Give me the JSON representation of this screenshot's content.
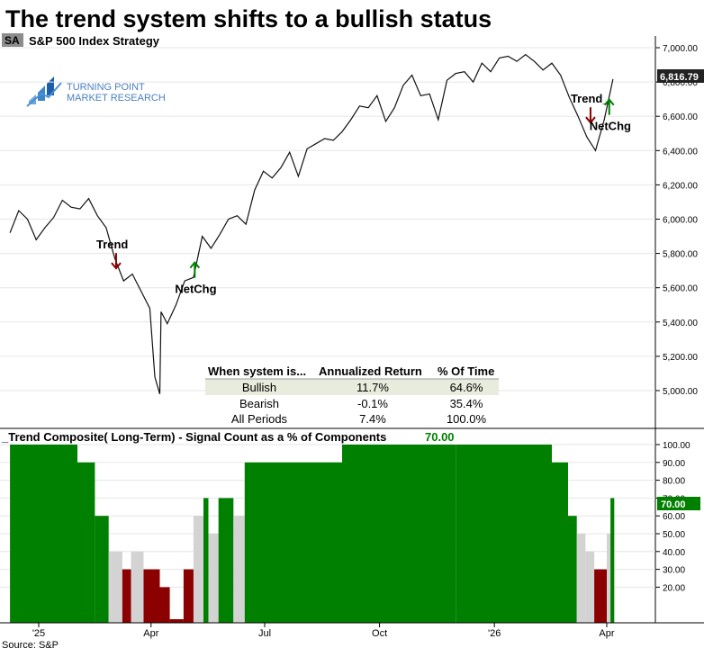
{
  "title": "The trend system shifts to a bullish status",
  "symbol_badge": "SA",
  "subtitle": "S&P 500 Index  Strategy",
  "logo": {
    "line1": "TURNING POINT",
    "line2": "MARKET RESEARCH"
  },
  "source": "Source: S&P",
  "colors": {
    "line": "#111111",
    "bullish": "#008000",
    "bearish": "#8b0000",
    "neutral": "#d3d3d3",
    "grid": "#e6e6e6"
  },
  "chart_data": [
    {
      "type": "line",
      "title": "S&P 500 Index  Strategy",
      "series": [
        {
          "x": [
            "2024-12-09",
            "2024-12-16",
            "2024-12-23",
            "2024-12-30",
            "2025-01-06",
            "2025-01-13",
            "2025-01-20",
            "2025-01-27",
            "2025-02-03",
            "2025-02-10",
            "2025-02-17",
            "2025-02-24",
            "2025-03-03",
            "2025-03-10",
            "2025-03-17",
            "2025-03-24",
            "2025-03-31",
            "2025-04-04",
            "2025-04-08",
            "2025-04-09",
            "2025-04-14",
            "2025-04-21",
            "2025-04-28",
            "2025-05-05",
            "2025-05-12",
            "2025-05-19",
            "2025-05-26",
            "2025-06-02",
            "2025-06-09",
            "2025-06-16",
            "2025-06-23",
            "2025-06-30",
            "2025-07-07",
            "2025-07-14",
            "2025-07-21",
            "2025-07-28",
            "2025-08-04",
            "2025-08-11",
            "2025-08-18",
            "2025-08-25",
            "2025-09-01",
            "2025-09-08",
            "2025-09-15",
            "2025-09-22",
            "2025-09-29",
            "2025-10-06",
            "2025-10-13",
            "2025-10-20",
            "2025-10-27",
            "2025-11-03",
            "2025-11-10",
            "2025-11-17",
            "2025-11-24",
            "2025-12-01",
            "2025-12-08",
            "2025-12-15",
            "2025-12-22",
            "2025-12-29",
            "2026-01-05",
            "2026-01-12",
            "2026-01-19",
            "2026-01-26",
            "2026-02-02",
            "2026-02-09",
            "2026-02-16",
            "2026-02-23",
            "2026-03-02",
            "2026-03-09",
            "2026-03-16",
            "2026-03-23",
            "2026-03-30",
            "2026-04-06"
          ],
          "values": [
            5920,
            6050,
            6000,
            5880,
            5950,
            6010,
            6110,
            6070,
            6060,
            6120,
            6020,
            5950,
            5770,
            5640,
            5680,
            5580,
            5480,
            5080,
            4980,
            5460,
            5390,
            5500,
            5640,
            5660,
            5900,
            5830,
            5910,
            6000,
            6020,
            5970,
            6170,
            6280,
            6240,
            6300,
            6390,
            6250,
            6410,
            6440,
            6470,
            6460,
            6510,
            6580,
            6660,
            6650,
            6720,
            6570,
            6650,
            6780,
            6840,
            6720,
            6730,
            6580,
            6810,
            6850,
            6860,
            6800,
            6910,
            6860,
            6940,
            6950,
            6920,
            6960,
            6920,
            6870,
            6910,
            6840,
            6710,
            6600,
            6480,
            6400,
            6580,
            6816.79
          ]
        }
      ],
      "last_value_label": "6,816.79",
      "yticks": [
        "7,000.00",
        "6,800.00",
        "6,600.00",
        "6,400.00",
        "6,200.00",
        "6,000.00",
        "5,800.00",
        "5,600.00",
        "5,400.00",
        "5,200.00",
        "5,000.00"
      ],
      "ylim": [
        4900,
        7050
      ],
      "annotations": [
        {
          "text": "Trend",
          "arrow": "down",
          "color": "#8b0000",
          "date": "2025-03-04",
          "value": 5750
        },
        {
          "text": "NetChg",
          "arrow": "up",
          "color": "#008000",
          "date": "2025-05-06",
          "value": 5700
        },
        {
          "text": "Trend_",
          "arrow": "down",
          "color": "#8b0000",
          "date": "2026-03-19",
          "value": 6600
        },
        {
          "text": "NetChg",
          "arrow": "up",
          "color": "#008000",
          "date": "2026-04-03",
          "value": 6650
        }
      ]
    },
    {
      "type": "table",
      "columns": [
        "When system is...",
        "Annualized Return",
        "% Of Time"
      ],
      "rows": [
        [
          "Bullish",
          "11.7%",
          "64.6%"
        ],
        [
          "Bearish",
          "-0.1%",
          "35.4%"
        ],
        [
          "All Periods",
          "7.4%",
          "100.0%"
        ]
      ]
    },
    {
      "type": "bar",
      "title": "_Trend Composite( Long-Term) - Signal Count as a % of Components",
      "last_value": "70.00",
      "yticks": [
        "100.00",
        "90.00",
        "80.00",
        "70.00",
        "60.00",
        "50.00",
        "40.00",
        "30.00",
        "20.00"
      ],
      "ylim": [
        0,
        105
      ],
      "segments": [
        {
          "from": "2024-12-09",
          "to": "2025-01-31",
          "value": 100,
          "state": "bullish"
        },
        {
          "from": "2025-02-01",
          "to": "2025-02-14",
          "value": 90,
          "state": "bullish"
        },
        {
          "from": "2025-02-15",
          "to": "2025-02-25",
          "value": 60,
          "state": "bullish"
        },
        {
          "from": "2025-02-26",
          "to": "2025-03-08",
          "value": 40,
          "state": "neutral"
        },
        {
          "from": "2025-03-09",
          "to": "2025-03-15",
          "value": 30,
          "state": "bearish"
        },
        {
          "from": "2025-03-16",
          "to": "2025-03-25",
          "value": 40,
          "state": "neutral"
        },
        {
          "from": "2025-03-26",
          "to": "2025-04-07",
          "value": 30,
          "state": "bearish"
        },
        {
          "from": "2025-04-08",
          "to": "2025-04-15",
          "value": 20,
          "state": "bearish"
        },
        {
          "from": "2025-04-16",
          "to": "2025-04-26",
          "value": 2,
          "state": "bearish"
        },
        {
          "from": "2025-04-27",
          "to": "2025-05-04",
          "value": 30,
          "state": "bearish"
        },
        {
          "from": "2025-05-05",
          "to": "2025-05-12",
          "value": 60,
          "state": "neutral"
        },
        {
          "from": "2025-05-13",
          "to": "2025-05-16",
          "value": 70,
          "state": "bullish"
        },
        {
          "from": "2025-05-17",
          "to": "2025-05-24",
          "value": 50,
          "state": "neutral"
        },
        {
          "from": "2025-05-25",
          "to": "2025-06-05",
          "value": 70,
          "state": "bullish"
        },
        {
          "from": "2025-06-06",
          "to": "2025-06-14",
          "value": 60,
          "state": "neutral"
        },
        {
          "from": "2025-06-15",
          "to": "2025-06-30",
          "value": 90,
          "state": "bullish"
        },
        {
          "from": "2025-07-01",
          "to": "2025-08-31",
          "value": 90,
          "state": "bullish"
        },
        {
          "from": "2025-09-01",
          "to": "2025-11-30",
          "value": 100,
          "state": "bullish"
        },
        {
          "from": "2025-12-01",
          "to": "2026-02-15",
          "value": 100,
          "state": "bullish"
        },
        {
          "from": "2026-02-16",
          "to": "2026-02-28",
          "value": 90,
          "state": "bullish"
        },
        {
          "from": "2026-03-01",
          "to": "2026-03-07",
          "value": 60,
          "state": "bullish"
        },
        {
          "from": "2026-03-08",
          "to": "2026-03-14",
          "value": 50,
          "state": "neutral"
        },
        {
          "from": "2026-03-15",
          "to": "2026-03-21",
          "value": 40,
          "state": "neutral"
        },
        {
          "from": "2026-03-22",
          "to": "2026-03-31",
          "value": 30,
          "state": "bearish"
        },
        {
          "from": "2026-04-01",
          "to": "2026-04-03",
          "value": 50,
          "state": "neutral"
        },
        {
          "from": "2026-04-04",
          "to": "2026-04-06",
          "value": 70,
          "state": "bullish"
        }
      ]
    }
  ],
  "xaxis": {
    "ticks": [
      {
        "label": "'25",
        "date": "2025-01-01"
      },
      {
        "label": "Apr",
        "date": "2025-04-01"
      },
      {
        "label": "Jul",
        "date": "2025-07-01"
      },
      {
        "label": "Oct",
        "date": "2025-10-01"
      },
      {
        "label": "'26",
        "date": "2026-01-01"
      },
      {
        "label": "Apr",
        "date": "2026-04-01"
      }
    ]
  }
}
